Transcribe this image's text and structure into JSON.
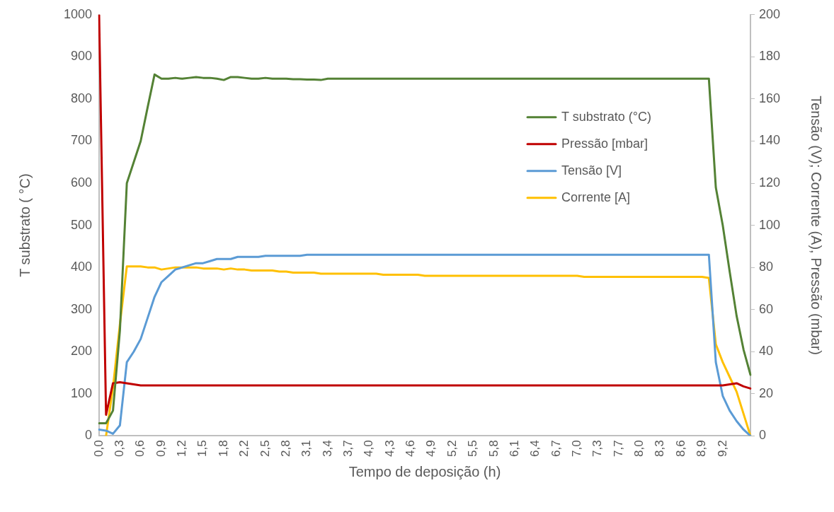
{
  "chart_data": {
    "type": "line",
    "xlabel": "Tempo de deposição (h)",
    "ylabel": "T substrato ( °C)",
    "y2label": "Tensão (V); Corrente (A), Pressão (mbar)",
    "categories": [
      "0,0",
      null,
      null,
      "0,3",
      null,
      null,
      "0,6",
      null,
      null,
      "0,9",
      null,
      null,
      "1,2",
      null,
      null,
      "1,5",
      null,
      null,
      "1,8",
      null,
      null,
      "2,2",
      null,
      null,
      "2,5",
      null,
      null,
      "2,8",
      null,
      null,
      "3,1",
      null,
      null,
      "3,4",
      null,
      null,
      "3,7",
      null,
      null,
      "4,0",
      null,
      null,
      "4,3",
      null,
      null,
      "4,6",
      null,
      null,
      "4,9",
      null,
      null,
      "5,2",
      null,
      null,
      "5,5",
      null,
      null,
      "5,8",
      null,
      null,
      "6,1",
      null,
      null,
      "6,4",
      null,
      null,
      "6,7",
      null,
      null,
      "7,0",
      null,
      null,
      "7,3",
      null,
      null,
      "7,7",
      null,
      null,
      "8,0",
      null,
      null,
      "8,3",
      null,
      null,
      "8,6",
      null,
      null,
      "8,9",
      null,
      null,
      "9,2",
      null,
      null,
      null,
      null
    ],
    "ylim": [
      0,
      1000
    ],
    "yticks": [
      0,
      100,
      200,
      300,
      400,
      500,
      600,
      700,
      800,
      900,
      1000
    ],
    "y2lim": [
      0,
      200
    ],
    "y2ticks": [
      0,
      20,
      40,
      60,
      80,
      100,
      120,
      140,
      160,
      180,
      200
    ],
    "legend": "top right",
    "series": [
      {
        "name": "T substrato (°C)",
        "color": "#548235",
        "values": [
          30,
          30,
          60,
          250,
          600,
          650,
          700,
          780,
          858,
          848,
          848,
          850,
          848,
          850,
          852,
          850,
          850,
          848,
          845,
          852,
          852,
          850,
          848,
          848,
          850,
          848,
          848,
          848,
          847,
          847,
          846,
          846,
          845,
          848,
          848,
          848,
          848,
          848,
          848,
          848,
          848,
          848,
          848,
          848,
          848,
          848,
          848,
          848,
          848,
          848,
          848,
          848,
          848,
          848,
          848,
          848,
          848,
          848,
          848,
          848,
          848,
          848,
          848,
          848,
          848,
          848,
          848,
          848,
          848,
          848,
          848,
          848,
          848,
          848,
          848,
          848,
          848,
          848,
          848,
          848,
          848,
          848,
          848,
          848,
          848,
          848,
          848,
          848,
          848,
          590,
          500,
          390,
          285,
          205,
          145
        ]
      },
      {
        "name": "Pressão [mbar]",
        "color": "#c00000",
        "axis": "y2",
        "values": [
          200,
          10,
          25,
          25.5,
          25,
          24.5,
          24,
          24,
          24,
          24,
          24,
          24,
          24,
          24,
          24,
          24,
          24,
          24,
          24,
          24,
          24,
          24,
          24,
          24,
          24,
          24,
          24,
          24,
          24,
          24,
          24,
          24,
          24,
          24,
          24,
          24,
          24,
          24,
          24,
          24,
          24,
          24,
          24,
          24,
          24,
          24,
          24,
          24,
          24,
          24,
          24,
          24,
          24,
          24,
          24,
          24,
          24,
          24,
          24,
          24,
          24,
          24,
          24,
          24,
          24,
          24,
          24,
          24,
          24,
          24,
          24,
          24,
          24,
          24,
          24,
          24,
          24,
          24,
          24,
          24,
          24,
          24,
          24,
          24,
          24,
          24,
          24,
          24,
          24,
          24,
          24,
          24.5,
          25,
          23.5,
          22.5
        ]
      },
      {
        "name": "Tensão [V]",
        "color": "#5b9bd5",
        "axis": "y2",
        "values": [
          3,
          2.5,
          1,
          5,
          35,
          40,
          46,
          56,
          66,
          73,
          76,
          79,
          80,
          81,
          82,
          82,
          83,
          84,
          84,
          84,
          85,
          85,
          85,
          85,
          85.5,
          85.5,
          85.5,
          85.5,
          85.5,
          85.5,
          86,
          86,
          86,
          86,
          86,
          86,
          86,
          86,
          86,
          86,
          86,
          86,
          86,
          86,
          86,
          86,
          86,
          86,
          86,
          86,
          86,
          86,
          86,
          86,
          86,
          86,
          86,
          86,
          86,
          86,
          86,
          86,
          86,
          86,
          86,
          86,
          86,
          86,
          86,
          86,
          86,
          86,
          86,
          86,
          86,
          86,
          86,
          86,
          86,
          86,
          86,
          86,
          86,
          86,
          86,
          86,
          86,
          86,
          86,
          35,
          19,
          12,
          7,
          3,
          0
        ]
      },
      {
        "name": "Corrente [A]",
        "color": "#ffc000",
        "axis": "y2",
        "values": [
          null,
          0,
          23,
          53,
          80.5,
          80.5,
          80.5,
          80,
          80,
          79,
          79.5,
          80,
          80,
          80,
          80,
          79.5,
          79.5,
          79.5,
          79,
          79.5,
          79,
          79,
          78.5,
          78.5,
          78.5,
          78.5,
          78,
          78,
          77.5,
          77.5,
          77.5,
          77.5,
          77,
          77,
          77,
          77,
          77,
          77,
          77,
          77,
          77,
          76.5,
          76.5,
          76.5,
          76.5,
          76.5,
          76.5,
          76,
          76,
          76,
          76,
          76,
          76,
          76,
          76,
          76,
          76,
          76,
          76,
          76,
          76,
          76,
          76,
          76,
          76,
          76,
          76,
          76,
          76,
          76,
          75.5,
          75.5,
          75.5,
          75.5,
          75.5,
          75.5,
          75.5,
          75.5,
          75.5,
          75.5,
          75.5,
          75.5,
          75.5,
          75.5,
          75.5,
          75.5,
          75.5,
          75.5,
          75,
          43.5,
          35,
          28,
          21,
          10.5,
          0
        ]
      }
    ]
  }
}
